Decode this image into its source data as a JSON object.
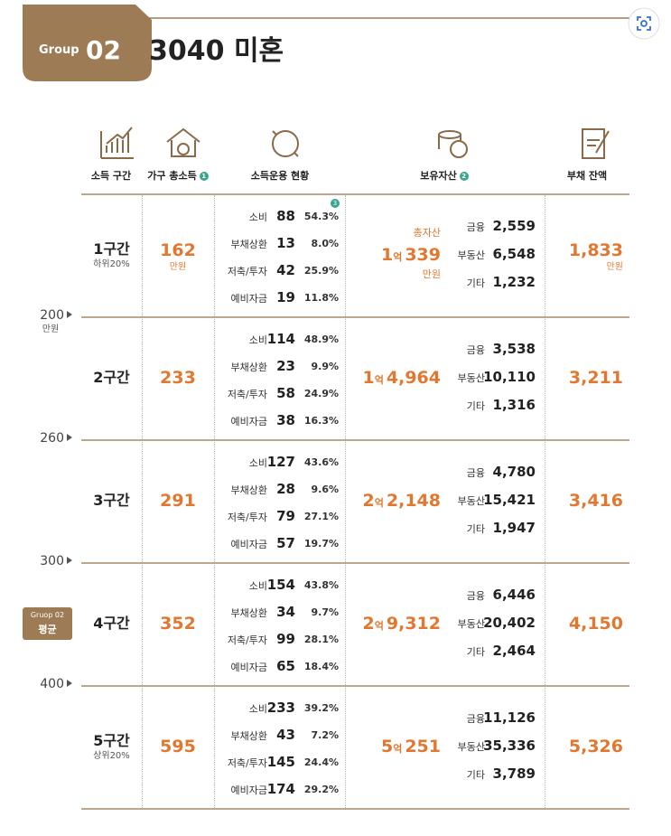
{
  "header": {
    "group_label": "Group",
    "group_number": "02",
    "title": "3040 미혼"
  },
  "columns": [
    {
      "label": "소득 구간"
    },
    {
      "label": "가구 총소득",
      "note": "1"
    },
    {
      "label": "소득운용 현황"
    },
    {
      "label": "보유자산",
      "note": "2"
    },
    {
      "label": "부채 잔액"
    }
  ],
  "side": {
    "markers": [
      {
        "value": "200",
        "unit": "만원"
      },
      {
        "value": "260"
      },
      {
        "value": "300"
      },
      {
        "value": "400"
      }
    ],
    "badge": {
      "line1": "Gruop 02",
      "line2": "평균"
    }
  },
  "rows": [
    {
      "name": "1구간",
      "sub": "하위20%",
      "income": "162",
      "income_unit": "만원",
      "spending_note": "3",
      "spending": [
        {
          "label": "소비",
          "amount": "88",
          "pct": "54.3%"
        },
        {
          "label": "부채상환",
          "amount": "13",
          "pct": "8.0%"
        },
        {
          "label": "저축/투자",
          "amount": "42",
          "pct": "25.9%"
        },
        {
          "label": "예비자금",
          "amount": "19",
          "pct": "11.8%"
        }
      ],
      "assets": {
        "total_label": "총자산",
        "eok": "1",
        "eok_unit": "억",
        "rest": "339",
        "unit": "만원",
        "items": [
          {
            "label": "금융",
            "value": "2,559"
          },
          {
            "label": "부동산",
            "value": "6,548"
          },
          {
            "label": "기타",
            "value": "1,232"
          }
        ]
      },
      "debt": "1,833",
      "debt_unit": "만원"
    },
    {
      "name": "2구간",
      "income": "233",
      "spending": [
        {
          "label": "소비",
          "amount": "114",
          "pct": "48.9%"
        },
        {
          "label": "부채상환",
          "amount": "23",
          "pct": "9.9%"
        },
        {
          "label": "저축/투자",
          "amount": "58",
          "pct": "24.9%"
        },
        {
          "label": "예비자금",
          "amount": "38",
          "pct": "16.3%"
        }
      ],
      "assets": {
        "eok": "1",
        "eok_unit": "억",
        "rest": "4,964",
        "items": [
          {
            "label": "금융",
            "value": "3,538"
          },
          {
            "label": "부동산",
            "value": "10,110"
          },
          {
            "label": "기타",
            "value": "1,316"
          }
        ]
      },
      "debt": "3,211"
    },
    {
      "name": "3구간",
      "income": "291",
      "spending": [
        {
          "label": "소비",
          "amount": "127",
          "pct": "43.6%"
        },
        {
          "label": "부채상환",
          "amount": "28",
          "pct": "9.6%"
        },
        {
          "label": "저축/투자",
          "amount": "79",
          "pct": "27.1%"
        },
        {
          "label": "예비자금",
          "amount": "57",
          "pct": "19.7%"
        }
      ],
      "assets": {
        "eok": "2",
        "eok_unit": "억",
        "rest": "2,148",
        "items": [
          {
            "label": "금융",
            "value": "4,780"
          },
          {
            "label": "부동산",
            "value": "15,421"
          },
          {
            "label": "기타",
            "value": "1,947"
          }
        ]
      },
      "debt": "3,416"
    },
    {
      "name": "4구간",
      "income": "352",
      "spending": [
        {
          "label": "소비",
          "amount": "154",
          "pct": "43.8%"
        },
        {
          "label": "부채상환",
          "amount": "34",
          "pct": "9.7%"
        },
        {
          "label": "저축/투자",
          "amount": "99",
          "pct": "28.1%"
        },
        {
          "label": "예비자금",
          "amount": "65",
          "pct": "18.4%"
        }
      ],
      "assets": {
        "eok": "2",
        "eok_unit": "억",
        "rest": "9,312",
        "items": [
          {
            "label": "금융",
            "value": "6,446"
          },
          {
            "label": "부동산",
            "value": "20,402"
          },
          {
            "label": "기타",
            "value": "2,464"
          }
        ]
      },
      "debt": "4,150"
    },
    {
      "name": "5구간",
      "sub": "상위20%",
      "income": "595",
      "spending": [
        {
          "label": "소비",
          "amount": "233",
          "pct": "39.2%"
        },
        {
          "label": "부채상환",
          "amount": "43",
          "pct": "7.2%"
        },
        {
          "label": "저축/투자",
          "amount": "145",
          "pct": "24.4%"
        },
        {
          "label": "예비자금",
          "amount": "174",
          "pct": "29.2%"
        }
      ],
      "assets": {
        "eok": "5",
        "eok_unit": "억",
        "rest": "251",
        "items": [
          {
            "label": "금융",
            "value": "11,126"
          },
          {
            "label": "부동산",
            "value": "35,336"
          },
          {
            "label": "기타",
            "value": "3,789"
          }
        ]
      },
      "debt": "5,326"
    }
  ]
}
